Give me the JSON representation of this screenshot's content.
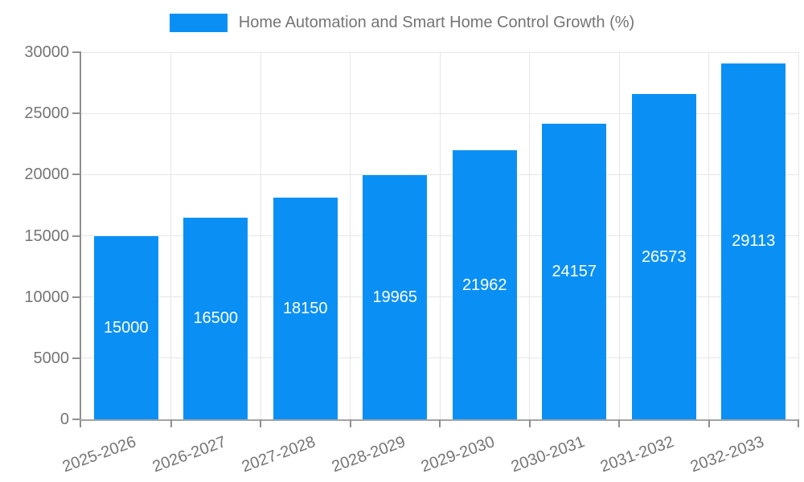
{
  "chart_data": {
    "type": "bar",
    "title": "Home Automation and Smart Home Control Growth (%)",
    "categories": [
      "2025-2026",
      "2026-2027",
      "2027-2028",
      "2028-2029",
      "2029-2030",
      "2030-2031",
      "2031-2032",
      "2032-2033"
    ],
    "values": [
      15000,
      16500,
      18150,
      19965,
      21962,
      24157,
      26573,
      29113
    ],
    "bar_labels": [
      "15000",
      "16500",
      "18150",
      "19965",
      "21962",
      "24157",
      "26573",
      "29113"
    ],
    "xlabel": "",
    "ylabel": "",
    "ylim": [
      0,
      30000
    ],
    "yticks": [
      0,
      5000,
      10000,
      15000,
      20000,
      25000,
      30000
    ],
    "grid": "both",
    "legend_position": "top-center",
    "x_label_rotation_deg": -20,
    "colors": {
      "bar": "#0a90f5",
      "grid": "#e6e6e6",
      "axis": "#8f8f8f",
      "text": "#757575",
      "bar_label": "#ffffff",
      "background": "#ffffff"
    }
  }
}
